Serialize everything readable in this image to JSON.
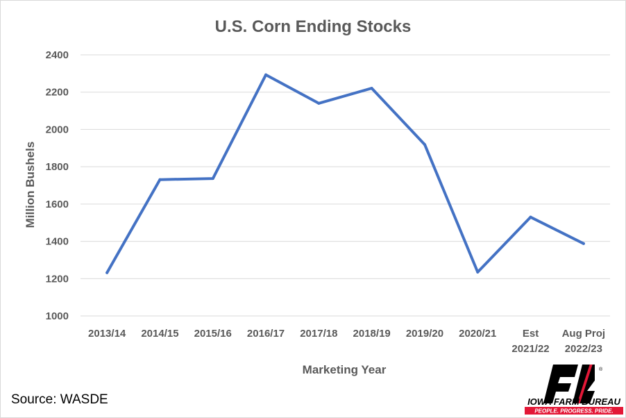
{
  "chart_data": {
    "type": "line",
    "title": "U.S. Corn Ending Stocks",
    "xlabel": "Marketing Year",
    "ylabel": "Million Bushels",
    "categories": [
      [
        "2013/14"
      ],
      [
        "2014/15"
      ],
      [
        "2015/16"
      ],
      [
        "2016/17"
      ],
      [
        "2017/18"
      ],
      [
        "2018/19"
      ],
      [
        "2019/20"
      ],
      [
        "2020/21"
      ],
      [
        "Est",
        "2021/22"
      ],
      [
        "Aug Proj",
        "2022/23"
      ]
    ],
    "series": [
      {
        "values": [
          1232,
          1731,
          1737,
          2293,
          2140,
          2221,
          1919,
          1235,
          1530,
          1388
        ],
        "color": "#4472c4"
      }
    ],
    "ylim": [
      1000,
      2400
    ],
    "yticks": [
      1000,
      1200,
      1400,
      1600,
      1800,
      2000,
      2200,
      2400
    ],
    "grid": true,
    "legend": "none"
  },
  "source": "Source: WASDE",
  "logo": {
    "name": "IOWA FARM BUREAU",
    "tagline": "PEOPLE. PROGRESS. PRIDE.",
    "registered_mark": "®",
    "brand_red": "#e31837",
    "brand_black": "#000000"
  }
}
